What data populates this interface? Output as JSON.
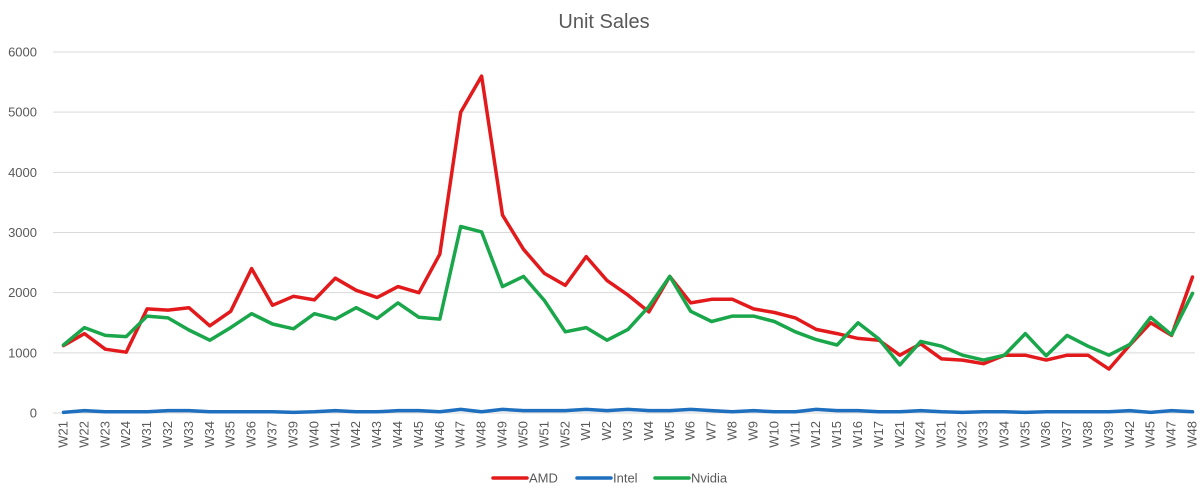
{
  "chart_data": {
    "type": "line",
    "title": "Unit Sales",
    "xlabel": "",
    "ylabel": "",
    "ylim": [
      0,
      6000
    ],
    "yticks": [
      0,
      1000,
      2000,
      3000,
      4000,
      5000,
      6000
    ],
    "grid": true,
    "legend_position": "bottom",
    "categories": [
      "W21",
      "W22",
      "W23",
      "W24",
      "W31",
      "W32",
      "W33",
      "W34",
      "W35",
      "W36",
      "W37",
      "W39",
      "W40",
      "W41",
      "W42",
      "W43",
      "W44",
      "W45",
      "W46",
      "W47",
      "W48",
      "W49",
      "W50",
      "W51",
      "W52",
      "W1",
      "W2",
      "W3",
      "W4",
      "W5",
      "W6",
      "W7",
      "W8",
      "W9",
      "W10",
      "W11",
      "W12",
      "W15",
      "W16",
      "W17",
      "W21",
      "W24",
      "W31",
      "W32",
      "W33",
      "W34",
      "W35",
      "W36",
      "W37",
      "W38",
      "W39",
      "W42",
      "W45",
      "W47",
      "W48"
    ],
    "series": [
      {
        "name": "AMD",
        "color": "#e31a1c",
        "values": [
          1120,
          1320,
          1060,
          1010,
          1730,
          1710,
          1750,
          1450,
          1690,
          2400,
          1790,
          1940,
          1880,
          2240,
          2040,
          1920,
          2100,
          2000,
          2640,
          5000,
          5600,
          3290,
          2720,
          2320,
          2120,
          2600,
          2200,
          1960,
          1680,
          2270,
          1830,
          1890,
          1890,
          1730,
          1670,
          1580,
          1390,
          1320,
          1240,
          1210,
          960,
          1150,
          900,
          880,
          820,
          960,
          960,
          880,
          960,
          960,
          730,
          1130,
          1500,
          1290,
          2260
        ]
      },
      {
        "name": "Intel",
        "color": "#1f6fbf",
        "values": [
          10,
          40,
          20,
          20,
          20,
          40,
          40,
          20,
          20,
          20,
          20,
          10,
          20,
          40,
          20,
          20,
          40,
          40,
          20,
          60,
          20,
          60,
          40,
          40,
          40,
          60,
          40,
          60,
          40,
          40,
          60,
          40,
          20,
          40,
          20,
          20,
          60,
          40,
          40,
          20,
          20,
          40,
          20,
          10,
          20,
          20,
          10,
          20,
          20,
          20,
          20,
          40,
          10,
          40,
          20
        ]
      },
      {
        "name": "Nvidia",
        "color": "#1aa64a",
        "values": [
          1130,
          1420,
          1290,
          1270,
          1610,
          1580,
          1380,
          1210,
          1420,
          1650,
          1480,
          1400,
          1650,
          1560,
          1750,
          1570,
          1830,
          1590,
          1560,
          3100,
          3010,
          2100,
          2270,
          1870,
          1350,
          1420,
          1210,
          1390,
          1770,
          2270,
          1690,
          1520,
          1610,
          1610,
          1520,
          1350,
          1220,
          1130,
          1500,
          1230,
          800,
          1190,
          1110,
          960,
          880,
          960,
          1320,
          950,
          1290,
          1110,
          960,
          1140,
          1590,
          1300,
          1990
        ]
      }
    ]
  }
}
